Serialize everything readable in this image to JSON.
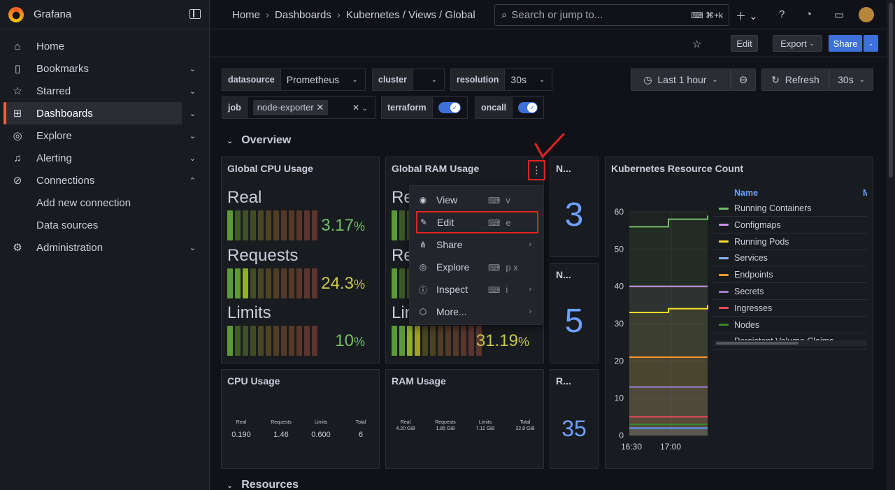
{
  "app": {
    "name": "Grafana"
  },
  "sidebar": {
    "items": [
      {
        "label": "Home",
        "icon": "home-icon",
        "glyph": "⌂",
        "y": 50
      },
      {
        "label": "Bookmarks",
        "icon": "bookmark-icon",
        "glyph": "▯",
        "y": 82,
        "chev": "⌄"
      },
      {
        "label": "Starred",
        "icon": "star-icon",
        "glyph": "☆",
        "y": 114,
        "chev": "⌄"
      },
      {
        "label": "Dashboards",
        "icon": "apps-icon",
        "glyph": "⊞",
        "y": 146,
        "chev": "⌄",
        "active": true
      },
      {
        "label": "Explore",
        "icon": "compass-icon",
        "glyph": "◎",
        "y": 178,
        "chev": "⌄"
      },
      {
        "label": "Alerting",
        "icon": "bell-icon",
        "glyph": "♫",
        "y": 210,
        "chev": "⌄"
      },
      {
        "label": "Connections",
        "icon": "connections-icon",
        "glyph": "⊘",
        "y": 242,
        "chev": "⌃"
      },
      {
        "label": "Administration",
        "icon": "gear-icon",
        "glyph": "⚙",
        "y": 338,
        "chev": "⌄"
      }
    ],
    "subitems": [
      {
        "label": "Add new connection",
        "y": 282
      },
      {
        "label": "Data sources",
        "y": 314
      }
    ]
  },
  "topbar": {
    "breadcrumbs": [
      "Home",
      "Dashboards",
      "Kubernetes / Views / Global"
    ],
    "search_placeholder": "Search or jump to...",
    "search_shortcut": "⌘+k"
  },
  "toolbar": {
    "edit": "Edit",
    "export": "Export",
    "share": "Share"
  },
  "variables": {
    "datasource": {
      "label": "datasource",
      "value": "Prometheus"
    },
    "cluster": {
      "label": "cluster",
      "value": ""
    },
    "resolution": {
      "label": "resolution",
      "value": "30s"
    },
    "job": {
      "label": "job",
      "value": "node-exporter"
    },
    "terraform": {
      "label": "terraform"
    },
    "oncall": {
      "label": "oncall"
    }
  },
  "timepicker": {
    "range": "Last 1 hour",
    "refresh": "Refresh",
    "interval": "30s"
  },
  "rows": {
    "overview": "Overview",
    "resources": "Resources"
  },
  "panels": {
    "cpu": {
      "title": "Global CPU Usage",
      "gauges": [
        {
          "label": "Real",
          "value": "3.17",
          "unit": "%",
          "fraction": 0.0317
        },
        {
          "label": "Requests",
          "value": "24.3",
          "unit": "%",
          "fraction": 0.243
        },
        {
          "label": "Limits",
          "value": "10",
          "unit": "%",
          "fraction": 0.1
        }
      ]
    },
    "ram": {
      "title": "Global RAM Usage",
      "gauges": [
        {
          "label": "Re"
        },
        {
          "label": "Re"
        },
        {
          "label": "Lin",
          "value": "31.19",
          "unit": "%",
          "fraction": 0.3119
        }
      ]
    },
    "stat1": {
      "title": "N...",
      "value": "3"
    },
    "stat2": {
      "title": "N...",
      "value": "5"
    },
    "stat3": {
      "title": "R...",
      "value": "35"
    },
    "cpu_usage": {
      "title": "CPU Usage",
      "cols": [
        {
          "h": "Real",
          "v": "0.190"
        },
        {
          "h": "Requests",
          "v": "1.46"
        },
        {
          "h": "Limits",
          "v": "0.600"
        },
        {
          "h": "Total",
          "v": "6"
        }
      ]
    },
    "ram_usage": {
      "title": "RAM Usage",
      "cols": [
        {
          "h": "Real",
          "v": "4.20 GiB"
        },
        {
          "h": "Requests",
          "v": "1.85 GiB"
        },
        {
          "h": "Limits",
          "v": "7.11 GiB"
        },
        {
          "h": "Total",
          "v": "22.8 GiB"
        }
      ]
    },
    "k8s": {
      "title": "Kubernetes Resource Count",
      "legend_header": "Name",
      "legend_header_trunc": "M"
    }
  },
  "menu": {
    "items": [
      {
        "label": "View",
        "icon": "eye-icon",
        "glyph": "◉",
        "key": "v"
      },
      {
        "label": "Edit",
        "icon": "edit-icon",
        "glyph": "✎",
        "key": "e",
        "highlight": true
      },
      {
        "label": "Share",
        "icon": "share-icon",
        "glyph": "⋔",
        "arrow": true
      },
      {
        "label": "Explore",
        "icon": "compass-icon",
        "glyph": "◎",
        "key": "p x"
      },
      {
        "label": "Inspect",
        "icon": "info-icon",
        "glyph": "ⓘ",
        "key": "i",
        "arrow": true
      },
      {
        "label": "More...",
        "icon": "cube-icon",
        "glyph": "⬡",
        "arrow": true
      }
    ]
  },
  "chart_data": {
    "type": "line",
    "title": "Kubernetes Resource Count",
    "x_ticks": [
      "16:30",
      "17:00"
    ],
    "ylim": [
      0,
      60
    ],
    "y_ticks": [
      0,
      10,
      20,
      30,
      40,
      50,
      60
    ],
    "series": [
      {
        "name": "Running Containers",
        "color": "#73bf69",
        "values": [
          56,
          56,
          58,
          58,
          59
        ]
      },
      {
        "name": "Configmaps",
        "color": "#ca95e5",
        "values": [
          40,
          40,
          40,
          40,
          40
        ]
      },
      {
        "name": "Running Pods",
        "color": "#fade2a",
        "values": [
          33,
          33,
          34,
          34,
          35
        ]
      },
      {
        "name": "Services",
        "color": "#8ab8ff",
        "values": [
          2,
          2,
          2,
          2,
          2
        ]
      },
      {
        "name": "Endpoints",
        "color": "#ff9830",
        "values": [
          21,
          21,
          21,
          21,
          21
        ]
      },
      {
        "name": "Secrets",
        "color": "#a07fd0",
        "values": [
          13,
          13,
          13,
          13,
          13
        ]
      },
      {
        "name": "Ingresses",
        "color": "#f2495c",
        "values": [
          5,
          5,
          5,
          5,
          5
        ]
      },
      {
        "name": "Nodes",
        "color": "#37872d",
        "values": [
          3,
          3,
          3,
          3,
          3
        ]
      },
      {
        "name": "Persistent Volume Claims",
        "color": "#5794f2",
        "values": [
          2,
          2,
          2,
          2,
          2
        ]
      }
    ]
  }
}
